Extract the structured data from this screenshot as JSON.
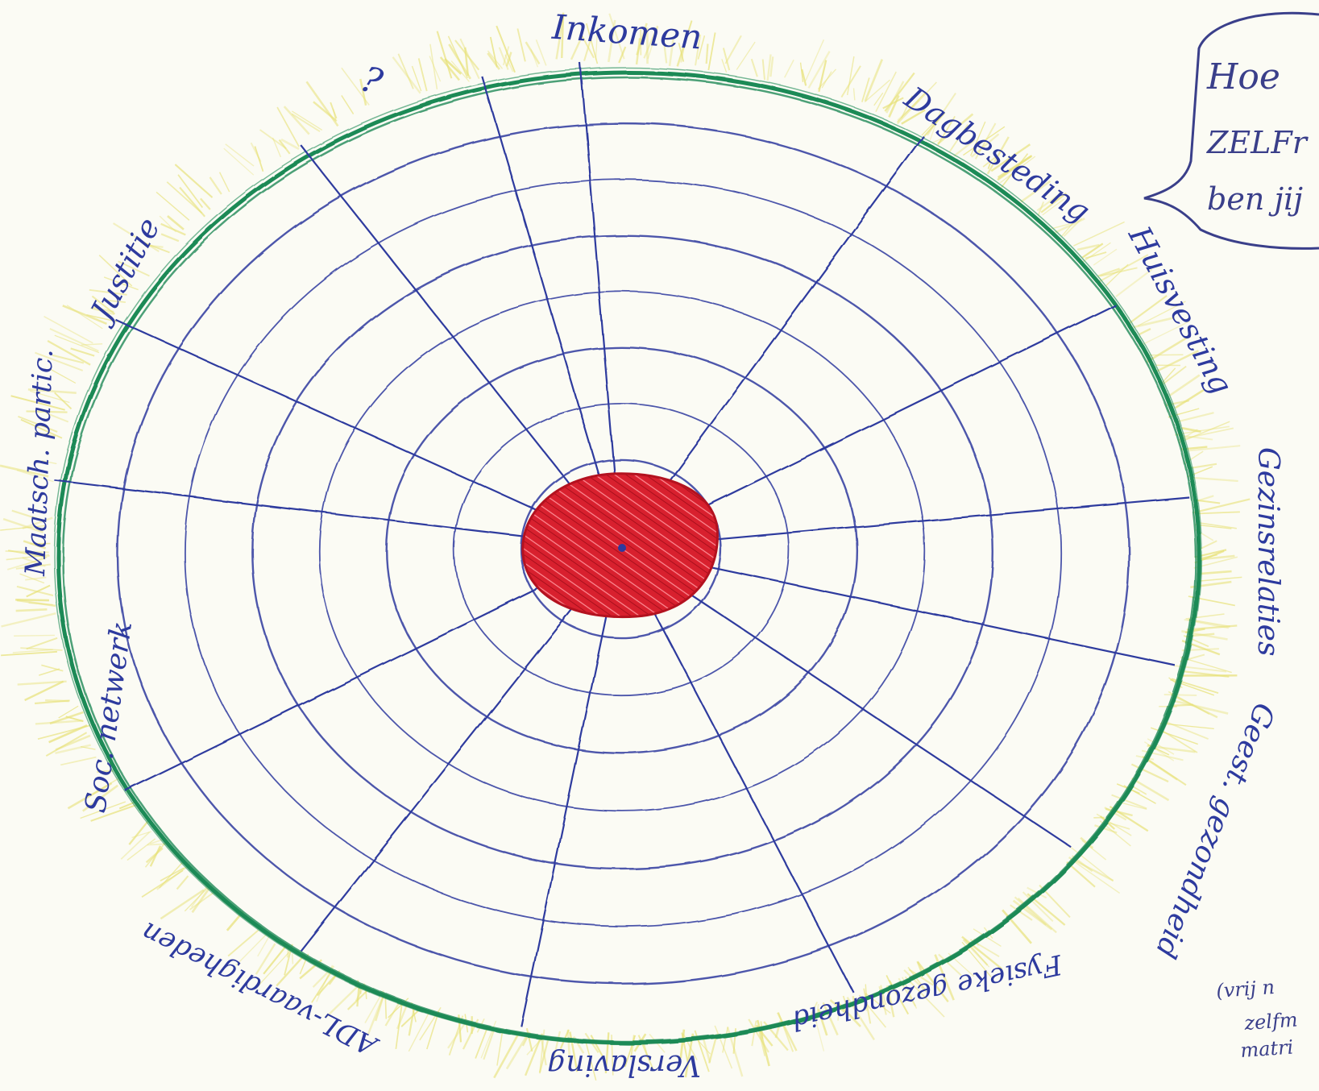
{
  "diagram": {
    "type": "web-wheel",
    "rings": 7,
    "spokes": 14,
    "labels": [
      "Inkomen",
      "Dagbesteding",
      "Huisvesting",
      "Gezinsrelaties",
      "Geest. gezondheid",
      "Fysieke gezondheid",
      "Verslaving",
      "ADL-vaardigheden",
      "Soc. netwerk",
      "Maatsch. partic.",
      "Justitie",
      "?"
    ],
    "colors": {
      "outer_ring": "#1f8a57",
      "web": "#2d3a9e",
      "center": "#d8202e",
      "halo": "#e8e27a"
    }
  },
  "speech_bubble": {
    "lines": [
      "Hoe",
      "ZELFr",
      "ben jij"
    ]
  },
  "side_note": {
    "lines": [
      "(vrij n",
      "zelfm",
      "matri"
    ]
  }
}
